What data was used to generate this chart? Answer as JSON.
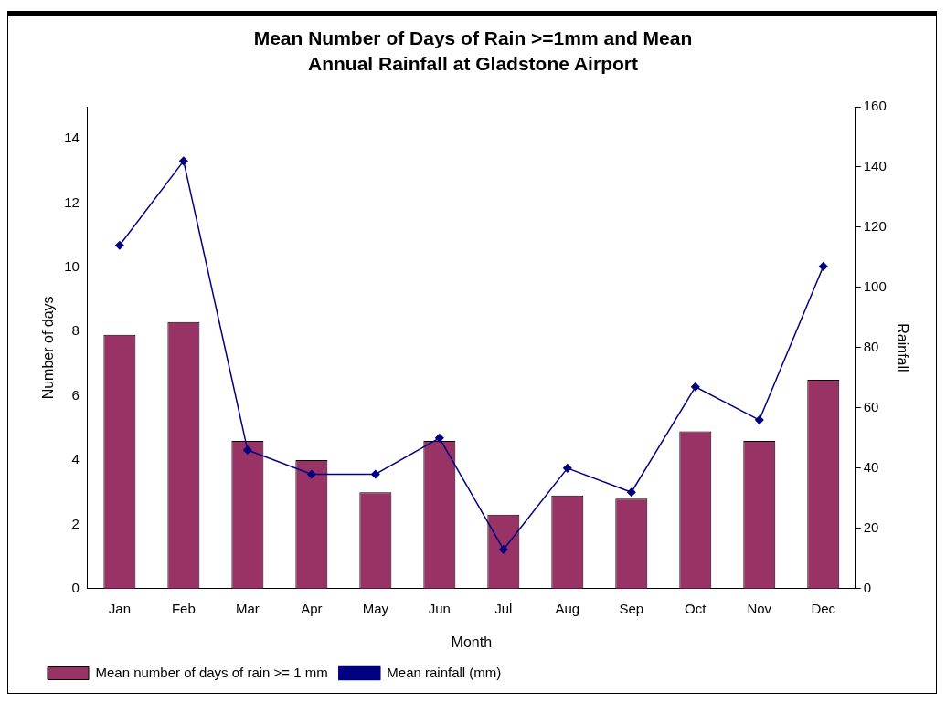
{
  "chart_data": {
    "type": "bar",
    "title": "Mean Number of Days of Rain >=1mm and Mean Annual Rainfall at Gladstone Airport",
    "xlabel": "Month",
    "ylabel": "Number of days",
    "y2label": "Rainfall",
    "categories": [
      "Jan",
      "Feb",
      "Mar",
      "Apr",
      "May",
      "Jun",
      "Jul",
      "Aug",
      "Sep",
      "Oct",
      "Nov",
      "Dec"
    ],
    "series": [
      {
        "name": "Mean number of days of rain >= 1 mm",
        "color": "#993366",
        "values": [
          7.9,
          8.3,
          4.6,
          4.0,
          3.0,
          4.6,
          2.3,
          2.9,
          2.8,
          4.9,
          4.6,
          6.5
        ]
      },
      {
        "name": "Mean rainfall (mm)",
        "type": "line",
        "axis": "y2",
        "color": "#000080",
        "values": [
          114,
          142,
          46,
          38,
          38,
          50,
          13,
          40,
          32,
          67,
          56,
          107
        ]
      }
    ],
    "ylim": [
      0,
      15
    ],
    "yticks": [
      0,
      2,
      4,
      6,
      8,
      10,
      12,
      14
    ],
    "y2lim": [
      0,
      160
    ],
    "y2ticks": [
      0,
      20,
      40,
      60,
      80,
      100,
      120,
      140,
      160
    ],
    "grid": false,
    "legend": "bottom left",
    "marker": "diamond",
    "line_style": "solid"
  }
}
